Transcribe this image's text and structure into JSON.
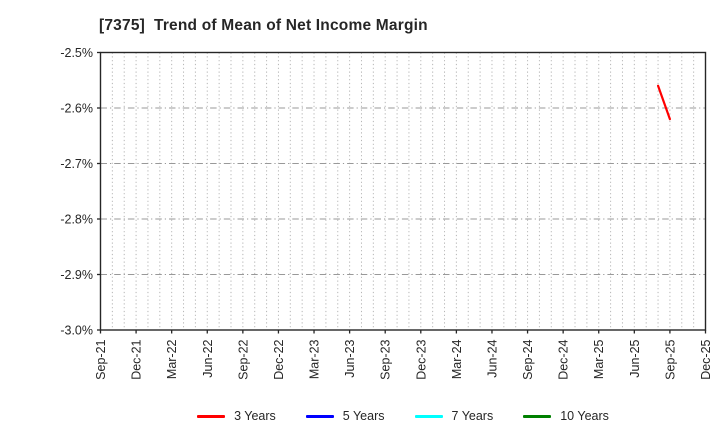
{
  "chart_data": {
    "type": "line",
    "title": "[7375]  Trend of Mean of Net Income Margin",
    "xlabel": "",
    "ylabel": "",
    "x_axis": {
      "unit": "month",
      "start": "Sep-21",
      "end": "Dec-25",
      "total_months": 51,
      "tick_labels": [
        "Sep-21",
        "Dec-21",
        "Mar-22",
        "Jun-22",
        "Sep-22",
        "Dec-22",
        "Mar-23",
        "Jun-23",
        "Sep-23",
        "Dec-23",
        "Mar-24",
        "Jun-24",
        "Sep-24",
        "Dec-24",
        "Mar-25",
        "Jun-25",
        "Sep-25",
        "Dec-25"
      ],
      "tick_step_months": 3
    },
    "y_axis": {
      "ylim": [
        -3.0,
        -2.5
      ],
      "ticks": [
        -2.5,
        -2.6,
        -2.7,
        -2.8,
        -2.9,
        -3.0
      ],
      "tick_labels": [
        "-2.5%",
        "-2.6%",
        "-2.7%",
        "-2.8%",
        "-2.9%",
        "-3.0%"
      ],
      "unit": "%"
    },
    "grid": {
      "vertical": "monthly dotted",
      "horizontal": "0.1% dash-dot",
      "vertical_color": "#b5b5b5",
      "horizontal_color": "#999999"
    },
    "legend_position": "bottom-center",
    "series": [
      {
        "name": "3 Years",
        "color": "#ff0000",
        "points": [
          {
            "x": "Aug-25",
            "y": -2.56
          },
          {
            "x": "Sep-25",
            "y": -2.62
          }
        ]
      },
      {
        "name": "5 Years",
        "color": "#0000ff",
        "points": []
      },
      {
        "name": "7 Years",
        "color": "#00ffff",
        "points": []
      },
      {
        "name": "10 Years",
        "color": "#008000",
        "points": []
      }
    ]
  },
  "style": {
    "axis_color": "#262626",
    "tick_label_color": "#262626",
    "background": "#ffffff"
  }
}
